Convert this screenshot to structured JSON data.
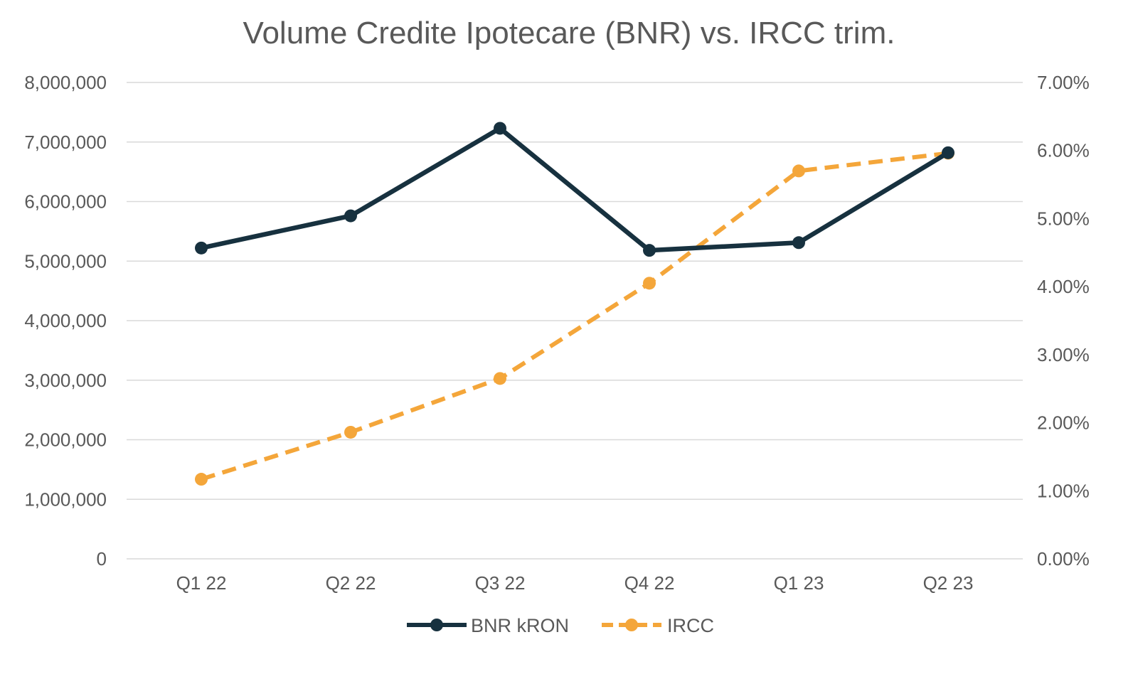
{
  "chart_data": {
    "type": "line",
    "title": "Volume Credite Ipotecare (BNR) vs. IRCC trim.",
    "categories": [
      "Q1 22",
      "Q2 22",
      "Q3 22",
      "Q4 22",
      "Q1 23",
      "Q2 23"
    ],
    "series": [
      {
        "name": "BNR kRON",
        "axis": "left",
        "color": "#17313f",
        "style": "solid",
        "values": [
          5220000,
          5760000,
          7230000,
          5180000,
          5310000,
          6820000
        ]
      },
      {
        "name": "IRCC",
        "axis": "right",
        "color": "#f4a63a",
        "style": "dashed",
        "values": [
          1.17,
          1.86,
          2.65,
          4.05,
          5.7,
          5.96
        ]
      }
    ],
    "y_left": {
      "lim": [
        0,
        8000000
      ],
      "ticks": [
        0,
        1000000,
        2000000,
        3000000,
        4000000,
        5000000,
        6000000,
        7000000,
        8000000
      ],
      "tick_labels": [
        "0",
        "1,000,000",
        "2,000,000",
        "3,000,000",
        "4,000,000",
        "5,000,000",
        "6,000,000",
        "7,000,000",
        "8,000,000"
      ]
    },
    "y_right": {
      "lim": [
        0,
        7
      ],
      "ticks": [
        0,
        1,
        2,
        3,
        4,
        5,
        6,
        7
      ],
      "tick_labels": [
        "0.00%",
        "1.00%",
        "2.00%",
        "3.00%",
        "4.00%",
        "5.00%",
        "6.00%",
        "7.00%"
      ]
    },
    "grid": true,
    "legend_position": "bottom-center",
    "colors": {
      "gridline": "#d9d9d9",
      "text": "#595959"
    }
  }
}
